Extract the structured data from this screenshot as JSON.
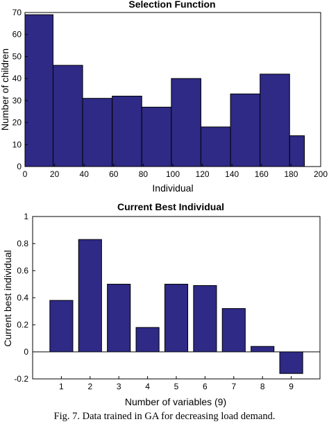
{
  "caption": "Fig. 7. Data trained in GA for decreasing load demand.",
  "colors": {
    "bar_fill": "#2e2a86",
    "bar_edge": "#000000"
  },
  "chart_data": [
    {
      "type": "bar",
      "title": "Selection Function",
      "xlabel": "Individual",
      "ylabel": "Number of children",
      "xlim": [
        0,
        200
      ],
      "ylim": [
        0,
        70
      ],
      "xticks": [
        0,
        20,
        40,
        60,
        80,
        100,
        120,
        140,
        160,
        180,
        200
      ],
      "yticks": [
        0,
        10,
        20,
        30,
        40,
        50,
        60,
        70
      ],
      "bin_edges": [
        0,
        19,
        39,
        59,
        79,
        99,
        119,
        139,
        159,
        179,
        189
      ],
      "values": [
        69,
        46,
        31,
        32,
        27,
        40,
        18,
        33,
        42,
        14
      ],
      "grid": false
    },
    {
      "type": "bar",
      "title": "Current Best Individual",
      "xlabel": "Number of variables (9)",
      "ylabel": "Current best individual",
      "categories": [
        "1",
        "2",
        "3",
        "4",
        "5",
        "6",
        "7",
        "8",
        "9"
      ],
      "values": [
        0.38,
        0.83,
        0.5,
        0.18,
        0.5,
        0.49,
        0.32,
        0.04,
        -0.16
      ],
      "ylim": [
        -0.2,
        1
      ],
      "yticks": [
        "-0.2",
        "0",
        "0.2",
        "0.4",
        "0.6",
        "0.8",
        "1"
      ],
      "grid": false
    }
  ]
}
